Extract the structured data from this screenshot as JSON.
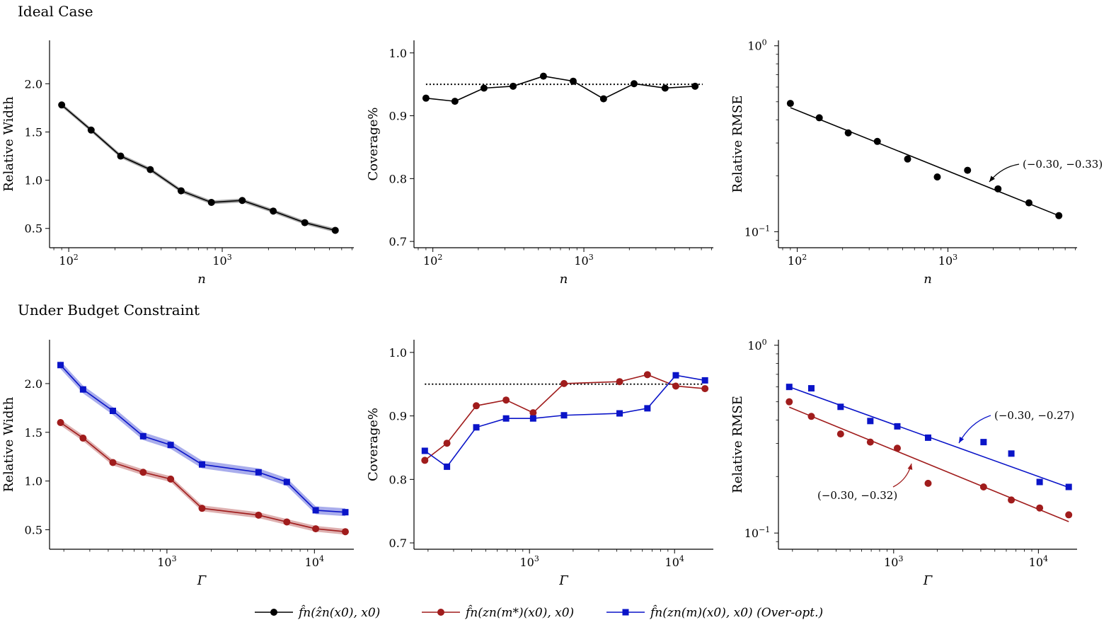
{
  "sections": {
    "top": "Ideal Case",
    "bottom": "Under Budget Constraint"
  },
  "chart_data": [
    {
      "id": "ideal-width",
      "type": "line",
      "xscale": "log",
      "xlim": [
        75,
        7200
      ],
      "ylim": [
        0.3,
        2.45
      ],
      "yticks": [
        0.5,
        1.0,
        1.5,
        2.0
      ],
      "ytick_labels": [
        "0.5",
        "1.0",
        "1.5",
        "2.0"
      ],
      "xlabel": "n",
      "ylabel": "Relative Width",
      "series": [
        {
          "name": "f̂n(ẑn(x0), x0)",
          "color": "#000000",
          "marker": "circle",
          "band": 0.02,
          "x": [
            90,
            140,
            218,
            340,
            540,
            850,
            1350,
            2150,
            3450,
            5450
          ],
          "y": [
            1.78,
            1.52,
            1.25,
            1.11,
            0.89,
            0.77,
            0.79,
            0.68,
            0.56,
            0.48
          ]
        }
      ]
    },
    {
      "id": "ideal-coverage",
      "type": "line",
      "xscale": "log",
      "xlim": [
        75,
        7200
      ],
      "ylim": [
        0.69,
        1.02
      ],
      "yticks": [
        0.7,
        0.8,
        0.9,
        1.0
      ],
      "ytick_labels": [
        "0.7",
        "0.8",
        "0.9",
        "1.0"
      ],
      "xlabel": "n",
      "ylabel": "Coverage%",
      "reference_line": 0.95,
      "series": [
        {
          "name": "f̂n(ẑn(x0), x0)",
          "color": "#000000",
          "marker": "circle",
          "x": [
            90,
            140,
            218,
            340,
            540,
            850,
            1350,
            2150,
            3450,
            5450
          ],
          "y": [
            0.928,
            0.923,
            0.944,
            0.947,
            0.963,
            0.955,
            0.927,
            0.951,
            0.944,
            0.947
          ]
        }
      ]
    },
    {
      "id": "ideal-rmse",
      "type": "scatter",
      "xscale": "log",
      "yscale": "log",
      "xlim": [
        75,
        7200
      ],
      "ylim": [
        0.082,
        1.07
      ],
      "yticks": [
        0.1,
        1.0
      ],
      "xlabel": "n",
      "ylabel": "Relative RMSE",
      "series": [
        {
          "name": "f̂n(ẑn(x0), x0)",
          "color": "#000000",
          "marker": "circle",
          "x": [
            90,
            140,
            218,
            340,
            540,
            850,
            1350,
            2150,
            3450,
            5450
          ],
          "y": [
            0.49,
            0.41,
            0.34,
            0.306,
            0.246,
            0.197,
            0.214,
            0.17,
            0.143,
            0.122
          ],
          "fit": {
            "x": [
              90,
              5450
            ],
            "y": [
              0.465,
              0.122
            ]
          },
          "annotation": "(−0.30, −0.33)"
        }
      ]
    },
    {
      "id": "budget-width",
      "type": "line",
      "xscale": "log",
      "xlim": [
        160,
        18500
      ],
      "ylim": [
        0.3,
        2.45
      ],
      "yticks": [
        0.5,
        1.0,
        1.5,
        2.0
      ],
      "ytick_labels": [
        "0.5",
        "1.0",
        "1.5",
        "2.0"
      ],
      "xlabel": "Γ",
      "ylabel": "Relative Width",
      "series": [
        {
          "name": "f̂n(zn(m*)(x0), x0)",
          "color": "#a01c1c",
          "marker": "circle",
          "band": 0.03,
          "x": [
            190,
            270,
            430,
            690,
            1060,
            1730,
            4180,
            6500,
            10200,
            16200
          ],
          "y": [
            1.6,
            1.44,
            1.19,
            1.09,
            1.02,
            0.72,
            0.65,
            0.58,
            0.51,
            0.48
          ]
        },
        {
          "name": "f̂n(zn(m)(x0), x0) (Over-opt.)",
          "color": "#0a14c8",
          "marker": "square",
          "band": 0.04,
          "x": [
            190,
            270,
            430,
            690,
            1060,
            1730,
            4180,
            6500,
            10200,
            16200
          ],
          "y": [
            2.19,
            1.94,
            1.72,
            1.46,
            1.37,
            1.17,
            1.09,
            0.99,
            0.7,
            0.68
          ]
        }
      ]
    },
    {
      "id": "budget-coverage",
      "type": "line",
      "xscale": "log",
      "xlim": [
        160,
        18500
      ],
      "ylim": [
        0.69,
        1.02
      ],
      "yticks": [
        0.7,
        0.8,
        0.9,
        1.0
      ],
      "ytick_labels": [
        "0.7",
        "0.8",
        "0.9",
        "1.0"
      ],
      "xlabel": "Γ",
      "ylabel": "Coverage%",
      "reference_line": 0.95,
      "series": [
        {
          "name": "f̂n(zn(m*)(x0), x0)",
          "color": "#a01c1c",
          "marker": "circle",
          "x": [
            190,
            270,
            430,
            690,
            1060,
            1730,
            4180,
            6500,
            10200,
            16200
          ],
          "y": [
            0.83,
            0.857,
            0.916,
            0.925,
            0.905,
            0.951,
            0.954,
            0.965,
            0.947,
            0.943
          ]
        },
        {
          "name": "f̂n(zn(m)(x0), x0) (Over-opt.)",
          "color": "#0a14c8",
          "marker": "square",
          "x": [
            190,
            270,
            430,
            690,
            1060,
            1730,
            4180,
            6500,
            10200,
            16200
          ],
          "y": [
            0.845,
            0.82,
            0.882,
            0.896,
            0.896,
            0.901,
            0.904,
            0.912,
            0.964,
            0.956
          ]
        }
      ]
    },
    {
      "id": "budget-rmse",
      "type": "scatter",
      "xscale": "log",
      "yscale": "log",
      "xlim": [
        160,
        18500
      ],
      "ylim": [
        0.082,
        1.07
      ],
      "yticks": [
        0.1,
        1.0
      ],
      "xlabel": "Γ",
      "ylabel": "Relative RMSE",
      "series": [
        {
          "name": "f̂n(zn(m*)(x0), x0)",
          "color": "#a01c1c",
          "marker": "circle",
          "x": [
            190,
            270,
            430,
            690,
            1060,
            1730,
            4180,
            6500,
            10200,
            16200
          ],
          "y": [
            0.5,
            0.418,
            0.337,
            0.305,
            0.283,
            0.184,
            0.176,
            0.15,
            0.136,
            0.125
          ],
          "fit": {
            "x": [
              190,
              16200
            ],
            "y": [
              0.468,
              0.115
            ]
          },
          "annotation": "(−0.30, −0.32)"
        },
        {
          "name": "f̂n(zn(m)(x0), x0) (Over-opt.)",
          "color": "#0a14c8",
          "marker": "square",
          "x": [
            190,
            270,
            430,
            690,
            1060,
            1730,
            4180,
            6500,
            10200,
            16200
          ],
          "y": [
            0.6,
            0.59,
            0.47,
            0.395,
            0.37,
            0.322,
            0.305,
            0.265,
            0.187,
            0.176
          ]
        },
        {
          "name": "fit-blue",
          "color": "#0a14c8",
          "marker": "none",
          "x": [],
          "y": [],
          "fit": {
            "x": [
              190,
              16200
            ],
            "y": [
              0.6,
              0.175
            ]
          },
          "annotation": "(−0.30, −0.27)"
        }
      ]
    }
  ],
  "legend": [
    {
      "label": "f̂n(ẑn(x0), x0)",
      "color": "#000000",
      "marker": "circle"
    },
    {
      "label": "f̂n(zn(m*)(x0), x0)",
      "color": "#a01c1c",
      "marker": "circle"
    },
    {
      "label": "f̂n(zn(m)(x0), x0) (Over-opt.)",
      "color": "#0a14c8",
      "marker": "square"
    }
  ]
}
